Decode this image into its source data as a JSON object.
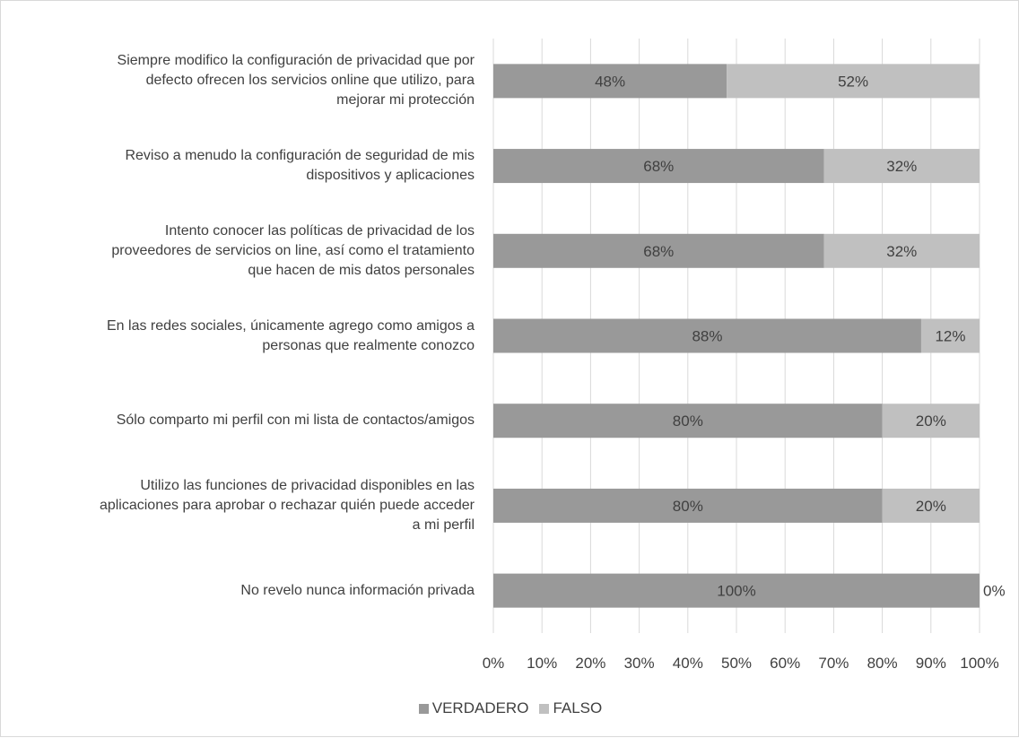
{
  "chart_data": {
    "type": "bar",
    "orientation": "horizontal",
    "stacking": "percent",
    "categories": [
      "Siempre modifico la configuración de privacidad que por defecto ofrecen los servicios online que utilizo, para mejorar mi protección",
      "Reviso a menudo la configuración de seguridad de mis dispositivos y aplicaciones",
      "Intento conocer las políticas de privacidad de los proveedores de servicios on line, así como el tratamiento que hacen de mis datos personales",
      "En las redes sociales, únicamente agrego como amigos a personas que realmente conozco",
      "Sólo comparto mi perfil con mi lista de contactos/amigos",
      "Utilizo las funciones de privacidad disponibles en las aplicaciones para aprobar o rechazar quién puede acceder a mi perfil",
      "No revelo nunca información privada"
    ],
    "category_lines": [
      [
        "Siempre modifico la configuración de privacidad que por",
        "defecto ofrecen los servicios online que utilizo, para",
        "mejorar mi protección"
      ],
      [
        "Reviso a menudo la configuración de seguridad de mis",
        "dispositivos y aplicaciones"
      ],
      [
        "Intento conocer las políticas de privacidad de los",
        "proveedores de servicios on line, así como el tratamiento",
        "que hacen de mis datos personales"
      ],
      [
        "En las redes sociales, únicamente agrego como amigos a",
        "personas que realmente conozco"
      ],
      [
        "Sólo comparto mi perfil con mi lista de contactos/amigos"
      ],
      [
        "Utilizo las funciones de privacidad disponibles en las",
        "aplicaciones para aprobar o rechazar quién puede acceder",
        "a mi perfil"
      ],
      [
        "No revelo nunca información privada"
      ]
    ],
    "series": [
      {
        "name": "VERDADERO",
        "values": [
          48,
          68,
          68,
          88,
          80,
          80,
          100
        ],
        "color": "#999999"
      },
      {
        "name": "FALSO",
        "values": [
          52,
          32,
          32,
          12,
          20,
          20,
          0
        ],
        "color": "#c0c0c0"
      }
    ],
    "data_labels": [
      [
        "48%",
        "68%",
        "68%",
        "88%",
        "80%",
        "80%",
        "100%"
      ],
      [
        "52%",
        "32%",
        "32%",
        "12%",
        "20%",
        "20%",
        "0%"
      ]
    ],
    "xlim": [
      0,
      100
    ],
    "x_ticks": [
      "0%",
      "10%",
      "20%",
      "30%",
      "40%",
      "50%",
      "60%",
      "70%",
      "80%",
      "90%",
      "100%"
    ],
    "grid": true,
    "legend_position": "bottom",
    "title": "",
    "xlabel": "",
    "ylabel": ""
  }
}
